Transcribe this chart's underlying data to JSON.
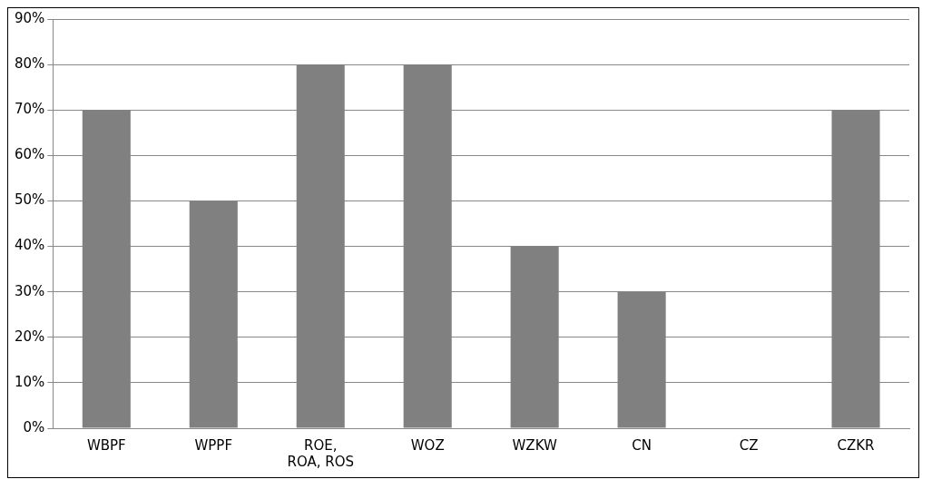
{
  "chart_data": {
    "type": "bar",
    "categories": [
      "WBPF",
      "WPPF",
      "ROE, ROA, ROS",
      "WOZ",
      "WZKW",
      "CN",
      "CZ",
      "CZKR"
    ],
    "values": [
      70,
      50,
      80,
      80,
      40,
      30,
      0,
      70
    ],
    "color": "#808080",
    "ylim": [
      0,
      90
    ],
    "yticks": [
      {
        "value": 0,
        "label": "0%"
      },
      {
        "value": 10,
        "label": "10%"
      },
      {
        "value": 20,
        "label": "20%"
      },
      {
        "value": 30,
        "label": "30%"
      },
      {
        "value": 40,
        "label": "40%"
      },
      {
        "value": 50,
        "label": "50%"
      },
      {
        "value": 60,
        "label": "60%"
      },
      {
        "value": 70,
        "label": "70%"
      },
      {
        "value": 80,
        "label": "80%"
      },
      {
        "value": 90,
        "label": "90%"
      }
    ],
    "grid": "y",
    "legend": false
  }
}
